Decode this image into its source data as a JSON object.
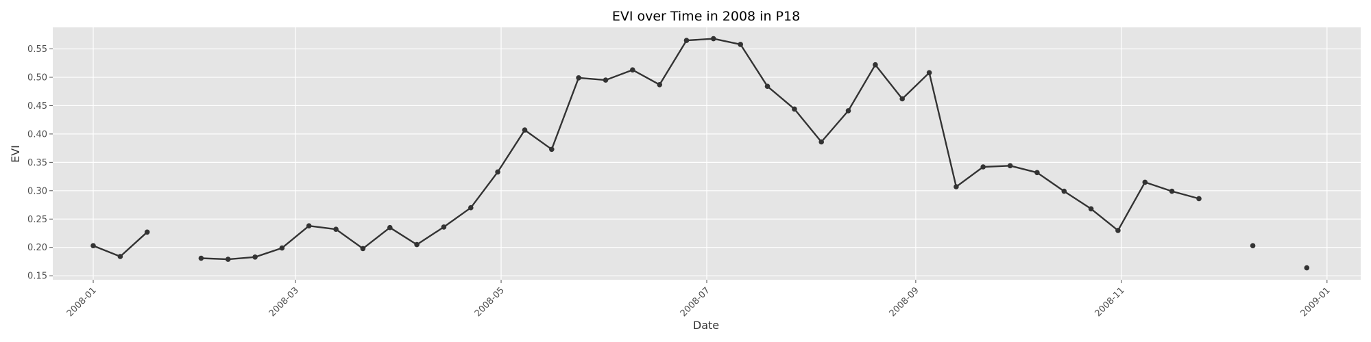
{
  "chart_data": {
    "type": "line",
    "title": "EVI over Time in 2008 in P18",
    "xlabel": "Date",
    "ylabel": "EVI",
    "grid": true,
    "legend": "none",
    "colors": {
      "plot_bg": "#e5e5e5",
      "grid": "#ffffff",
      "line": "#333333",
      "text": "#4d4d4d"
    },
    "xlim": [
      "2007-12-20",
      "2009-01-11"
    ],
    "ylim": [
      0.143,
      0.588
    ],
    "x_ticks": [
      {
        "date": "2008-01-01",
        "label": "2008-01"
      },
      {
        "date": "2008-03-01",
        "label": "2008-03"
      },
      {
        "date": "2008-05-01",
        "label": "2008-05"
      },
      {
        "date": "2008-07-01",
        "label": "2008-07"
      },
      {
        "date": "2008-09-01",
        "label": "2008-09"
      },
      {
        "date": "2008-11-01",
        "label": "2008-11"
      },
      {
        "date": "2009-01-01",
        "label": "2009-01"
      }
    ],
    "y_ticks": [
      {
        "value": 0.15,
        "label": "0.15"
      },
      {
        "value": 0.2,
        "label": "0.20"
      },
      {
        "value": 0.25,
        "label": "0.25"
      },
      {
        "value": 0.3,
        "label": "0.30"
      },
      {
        "value": 0.35,
        "label": "0.35"
      },
      {
        "value": 0.4,
        "label": "0.40"
      },
      {
        "value": 0.45,
        "label": "0.45"
      },
      {
        "value": 0.5,
        "label": "0.50"
      },
      {
        "value": 0.55,
        "label": "0.55"
      }
    ],
    "series": [
      {
        "points": [
          {
            "x": "2008-01-01",
            "y": 0.203
          },
          {
            "x": "2008-01-09",
            "y": 0.184
          },
          {
            "x": "2008-01-17",
            "y": 0.227
          },
          {
            "x": "2008-01-25",
            "y": null
          },
          {
            "x": "2008-02-02",
            "y": 0.181
          },
          {
            "x": "2008-02-10",
            "y": 0.179
          },
          {
            "x": "2008-02-18",
            "y": 0.183
          },
          {
            "x": "2008-02-26",
            "y": 0.199
          },
          {
            "x": "2008-03-05",
            "y": 0.238
          },
          {
            "x": "2008-03-13",
            "y": 0.232
          },
          {
            "x": "2008-03-21",
            "y": 0.198
          },
          {
            "x": "2008-03-29",
            "y": 0.235
          },
          {
            "x": "2008-04-06",
            "y": 0.205
          },
          {
            "x": "2008-04-14",
            "y": 0.236
          },
          {
            "x": "2008-04-22",
            "y": 0.27
          },
          {
            "x": "2008-04-30",
            "y": 0.333
          },
          {
            "x": "2008-05-08",
            "y": 0.407
          },
          {
            "x": "2008-05-16",
            "y": 0.373
          },
          {
            "x": "2008-05-24",
            "y": 0.499
          },
          {
            "x": "2008-06-01",
            "y": 0.495
          },
          {
            "x": "2008-06-09",
            "y": 0.513
          },
          {
            "x": "2008-06-17",
            "y": 0.487
          },
          {
            "x": "2008-06-25",
            "y": 0.565
          },
          {
            "x": "2008-07-03",
            "y": 0.568
          },
          {
            "x": "2008-07-11",
            "y": 0.558
          },
          {
            "x": "2008-07-19",
            "y": 0.484
          },
          {
            "x": "2008-07-27",
            "y": 0.444
          },
          {
            "x": "2008-08-04",
            "y": 0.386
          },
          {
            "x": "2008-08-12",
            "y": 0.441
          },
          {
            "x": "2008-08-20",
            "y": 0.522
          },
          {
            "x": "2008-08-28",
            "y": 0.462
          },
          {
            "x": "2008-09-05",
            "y": 0.508
          },
          {
            "x": "2008-09-13",
            "y": 0.307
          },
          {
            "x": "2008-09-21",
            "y": 0.342
          },
          {
            "x": "2008-09-29",
            "y": 0.344
          },
          {
            "x": "2008-10-07",
            "y": 0.332
          },
          {
            "x": "2008-10-15",
            "y": 0.299
          },
          {
            "x": "2008-10-23",
            "y": 0.268
          },
          {
            "x": "2008-10-31",
            "y": 0.23
          },
          {
            "x": "2008-11-08",
            "y": 0.315
          },
          {
            "x": "2008-11-16",
            "y": 0.299
          },
          {
            "x": "2008-11-24",
            "y": 0.286
          },
          {
            "x": "2008-12-02",
            "y": null
          },
          {
            "x": "2008-12-10",
            "y": 0.203
          },
          {
            "x": "2008-12-18",
            "y": null
          },
          {
            "x": "2008-12-26",
            "y": 0.164
          }
        ]
      }
    ]
  }
}
